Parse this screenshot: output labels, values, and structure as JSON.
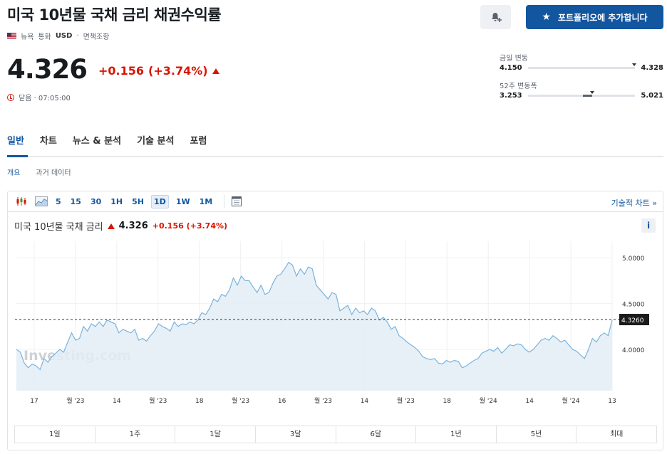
{
  "header": {
    "title": "미국 10년물 국채 금리 채권수익률",
    "region": "뉴욕",
    "currency_label": "통화",
    "currency": "USD",
    "disclaimer": "면책조항",
    "add_portfolio_label": "포트폴리오에 추가합니다"
  },
  "quote": {
    "price": "4.326",
    "change": "+0.156",
    "change_pct": "(+3.74%)",
    "status": "닫음 · 07:05:00"
  },
  "ranges": {
    "day_label": "금일 변동",
    "day_low": "4.150",
    "day_high": "4.328",
    "day_position": 0.99,
    "week52_label": "52주 변동폭",
    "week52_low": "3.253",
    "week52_high": "5.021",
    "week52_fill_start": 0.51,
    "week52_fill_end": 0.6,
    "week52_position": 0.6
  },
  "tabs": [
    "일반",
    "차트",
    "뉴스 & 분석",
    "기술 분석",
    "포럼"
  ],
  "subtabs": [
    "개요",
    "과거 데이터"
  ],
  "chart": {
    "periods_toolbar": [
      "5",
      "15",
      "30",
      "1H",
      "5H",
      "1D",
      "1W",
      "1M"
    ],
    "selected_period": "1D",
    "tech_chart_label": "기술적 차트 »",
    "head_name": "미국 10년물 국채 금리",
    "head_value": "4.326",
    "head_change": "+0.156 (+3.74%)",
    "info_label": "i",
    "watermark": "Investing.com",
    "range_buttons": [
      "1일",
      "1주",
      "1달",
      "3달",
      "6달",
      "1년",
      "5년",
      "최대"
    ],
    "current_label": "4.3260"
  },
  "chart_data": {
    "type": "area",
    "y_ticks": [
      "5.0000",
      "4.5000",
      "4.0000"
    ],
    "x_ticks": [
      "17",
      "월 '23",
      "14",
      "월 '23",
      "18",
      "월 '23",
      "16",
      "월 '23",
      "14",
      "월 '23",
      "18",
      "월 '24",
      "14",
      "월 '24",
      "13"
    ],
    "ylim": [
      3.55,
      5.18
    ],
    "current_value": 4.326,
    "values": [
      4.0,
      3.97,
      3.85,
      3.8,
      3.84,
      3.82,
      3.78,
      3.9,
      3.86,
      3.92,
      3.96,
      4.0,
      3.97,
      4.08,
      4.18,
      4.1,
      4.12,
      4.25,
      4.2,
      4.28,
      4.25,
      4.3,
      4.25,
      4.32,
      4.3,
      4.28,
      4.18,
      4.22,
      4.2,
      4.18,
      4.22,
      4.1,
      4.12,
      4.09,
      4.15,
      4.2,
      4.28,
      4.25,
      4.23,
      4.2,
      4.3,
      4.25,
      4.28,
      4.27,
      4.3,
      4.28,
      4.32,
      4.4,
      4.38,
      4.45,
      4.55,
      4.52,
      4.6,
      4.58,
      4.65,
      4.78,
      4.7,
      4.8,
      4.75,
      4.75,
      4.68,
      4.62,
      4.7,
      4.6,
      4.62,
      4.72,
      4.8,
      4.82,
      4.88,
      4.95,
      4.92,
      4.8,
      4.88,
      4.82,
      4.9,
      4.88,
      4.7,
      4.65,
      4.6,
      4.55,
      4.62,
      4.6,
      4.42,
      4.45,
      4.48,
      4.38,
      4.45,
      4.4,
      4.42,
      4.38,
      4.45,
      4.42,
      4.32,
      4.35,
      4.3,
      4.22,
      4.25,
      4.15,
      4.12,
      4.08,
      4.05,
      4.02,
      3.98,
      3.92,
      3.9,
      3.89,
      3.9,
      3.85,
      3.84,
      3.88,
      3.86,
      3.88,
      3.87,
      3.8,
      3.82,
      3.85,
      3.88,
      3.9,
      3.96,
      3.98,
      4.0,
      3.98,
      4.02,
      3.96,
      4.0,
      4.05,
      4.04,
      4.06,
      4.05,
      4.0,
      3.97,
      4.0,
      4.05,
      4.1,
      4.12,
      4.1,
      4.15,
      4.12,
      4.08,
      4.1,
      4.05,
      4.0,
      3.98,
      3.94,
      3.9,
      4.0,
      4.12,
      4.08,
      4.15,
      4.18,
      4.15,
      4.32
    ]
  },
  "colors": {
    "brand_blue": "#1256a0",
    "up_red": "#d91400",
    "area_fill": "#e3edf6",
    "area_line": "#7ab3dc"
  },
  "icons": {
    "bell": "bell-plus-icon",
    "star": "star-icon",
    "clock": "clock-icon",
    "candles": "candlestick-icon",
    "area": "area-chart-icon",
    "calendar": "calendar-icon"
  }
}
